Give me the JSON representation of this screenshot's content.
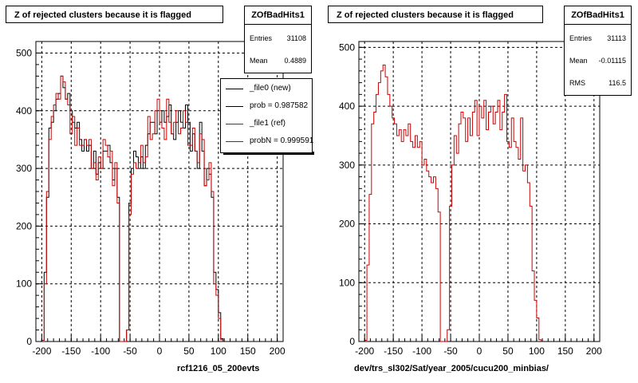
{
  "colors": {
    "ref": "#cc0000",
    "new": "#000000",
    "grid": "#000000"
  },
  "chart_data": [
    {
      "type": "bar",
      "title": "Z of rejected clusters  because it is flagged",
      "xlabel": "rcf1216_05_200evts",
      "xlim": [
        -210,
        210
      ],
      "ylim": [
        0,
        520
      ],
      "xticks": [
        -200,
        -150,
        -100,
        -50,
        0,
        50,
        100,
        150,
        200
      ],
      "yticks": [
        0,
        100,
        200,
        300,
        400,
        500
      ],
      "grid": true,
      "stats": {
        "name": "ZOfBadHits1",
        "entries_label": "Entries",
        "entries": "31108",
        "mean_label": "Mean",
        "mean": "0.4889"
      },
      "legend": {
        "placement": "top-right",
        "entries": [
          {
            "label": "_file0 (new)"
          },
          {
            "label": "prob = 0.987582"
          },
          {
            "label": "_file1 (ref)"
          },
          {
            "label": "probN = 0.999591"
          }
        ]
      },
      "bin_width": 4,
      "x_start": -200,
      "series": [
        {
          "name": "_file0 (new)",
          "values": [
            2,
            120,
            250,
            370,
            380,
            400,
            420,
            430,
            460,
            440,
            420,
            430,
            400,
            380,
            370,
            380,
            350,
            330,
            350,
            330,
            340,
            300,
            330,
            290,
            310,
            300,
            330,
            330,
            340,
            310,
            280,
            300,
            250,
            0,
            0,
            0,
            20,
            240,
            300,
            330,
            320,
            300,
            320,
            300,
            340,
            360,
            380,
            380,
            360,
            400,
            380,
            400,
            380,
            390,
            410,
            360,
            350,
            380,
            400,
            380,
            370,
            410,
            380,
            330,
            360,
            330,
            300,
            380,
            330,
            270,
            300,
            290,
            250,
            120,
            90,
            50,
            5
          ]
        },
        {
          "name": "_file1 (ref)",
          "values": [
            2,
            100,
            260,
            350,
            390,
            410,
            430,
            420,
            460,
            450,
            420,
            410,
            360,
            390,
            340,
            370,
            340,
            340,
            350,
            340,
            350,
            300,
            310,
            280,
            320,
            300,
            350,
            340,
            320,
            330,
            270,
            310,
            240,
            0,
            0,
            0,
            20,
            220,
            290,
            310,
            300,
            310,
            340,
            310,
            320,
            390,
            350,
            360,
            400,
            420,
            380,
            370,
            350,
            420,
            380,
            360,
            380,
            400,
            360,
            370,
            400,
            380,
            340,
            340,
            370,
            330,
            310,
            360,
            350,
            270,
            280,
            310,
            260,
            100,
            80,
            40,
            3
          ]
        }
      ]
    },
    {
      "type": "bar",
      "title": "Z of rejected clusters  because it is flagged",
      "xlabel": "dev/trs_sl302/Sat/year_2005/cucu200_minbias/",
      "xlim": [
        -210,
        210
      ],
      "ylim": [
        0,
        510
      ],
      "xticks": [
        -200,
        -150,
        -100,
        -50,
        0,
        50,
        100,
        150,
        200
      ],
      "yticks": [
        0,
        100,
        200,
        300,
        400,
        500
      ],
      "grid": true,
      "stats": {
        "name": "ZOfBadHits1",
        "entries_label": "Entries",
        "entries": "31113",
        "mean_label": "Mean",
        "mean": "-0.01115",
        "rms_label": "RMS",
        "rms": "116.5"
      },
      "bin_width": 4,
      "x_start": -200,
      "series": [
        {
          "name": "ref",
          "values": [
            2,
            130,
            250,
            370,
            390,
            420,
            440,
            460,
            470,
            450,
            420,
            400,
            380,
            370,
            350,
            360,
            340,
            360,
            350,
            370,
            340,
            330,
            350,
            330,
            340,
            300,
            310,
            290,
            280,
            270,
            280,
            260,
            220,
            0,
            0,
            0,
            20,
            230,
            300,
            350,
            320,
            370,
            390,
            380,
            340,
            380,
            350,
            390,
            410,
            350,
            400,
            380,
            410,
            360,
            390,
            400,
            370,
            390,
            410,
            360,
            390,
            420,
            340,
            330,
            380,
            340,
            330,
            310,
            380,
            290,
            300,
            270,
            230,
            120,
            70,
            40,
            3
          ]
        }
      ]
    }
  ]
}
